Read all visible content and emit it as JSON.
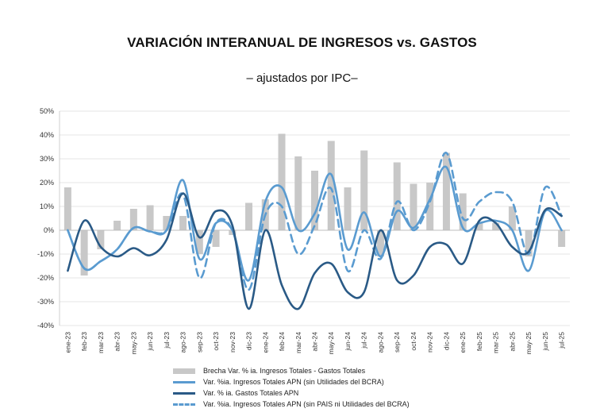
{
  "chart_data": {
    "type": "bar+line",
    "title": "VARIACIÓN INTERANUAL DE INGRESOS vs. GASTOS",
    "subtitle": "– ajustados por IPC–",
    "ylim": [
      -40,
      50
    ],
    "yticks": [
      "50%",
      "40%",
      "30%",
      "20%",
      "10%",
      "0%",
      "-10%",
      "-20%",
      "-30%",
      "-40%"
    ],
    "ytick_values": [
      50,
      40,
      30,
      20,
      10,
      0,
      -10,
      -20,
      -30,
      -40
    ],
    "categories": [
      "ene-23",
      "feb-23",
      "mar-23",
      "abr-23",
      "may-23",
      "jun-23",
      "jul-23",
      "ago-23",
      "sep-23",
      "oct-23",
      "nov-23",
      "dic-23",
      "ene-24",
      "feb-24",
      "mar-24",
      "abr-24",
      "may-24",
      "jun-24",
      "jul-24",
      "ago-24",
      "sep-24",
      "oct-24",
      "nov-24",
      "dic-24",
      "ene-25",
      "feb-25",
      "mar-25",
      "abr-25",
      "may-25",
      "jun-25",
      "jul-25"
    ],
    "series": [
      {
        "name": "Brecha Var. % ia. Ingresos Totales - Gastos Totales",
        "kind": "bar",
        "color": "#c8c8c8",
        "values": [
          18,
          -19,
          -8,
          4,
          9,
          10.5,
          6,
          6,
          -10,
          -7,
          -2,
          11.5,
          13,
          40.5,
          31,
          25,
          37.5,
          18,
          33.5,
          -11,
          28.5,
          19.5,
          20,
          32.5,
          15.5,
          3,
          3,
          10,
          -11,
          0,
          -7
        ]
      },
      {
        "name": "Var. %ia. Ingresos Totales APN (sin Utilidades del BCRA)",
        "kind": "line",
        "color": "#5a9bd0",
        "values": [
          0,
          -16,
          -13,
          -8,
          1,
          -0.5,
          0,
          21,
          -12,
          3,
          0,
          -21,
          12,
          18,
          0,
          7,
          23.5,
          -8,
          7.5,
          -11,
          8,
          1,
          13,
          26.5,
          1,
          3,
          4,
          0,
          -17,
          8,
          0
        ]
      },
      {
        "name": "Var. % ia. Gastos Totales APN",
        "kind": "line",
        "color": "#2a5a86",
        "values": [
          -17,
          4,
          -7,
          -11,
          -7.5,
          -10.5,
          -4,
          15.5,
          -3,
          8,
          2,
          -33,
          0,
          -23,
          -33,
          -18,
          -14,
          -26,
          -26,
          0,
          -21,
          -19,
          -7,
          -6,
          -14,
          4,
          3,
          -7,
          -9,
          8.5,
          6
        ]
      },
      {
        "name": "Var. %ia. Ingresos Totales APN (sin PAIS ni Utilidades del BCRA)",
        "kind": "dashed-line",
        "color": "#5a9bd0",
        "values": [
          0,
          -16,
          -13,
          -8,
          1,
          -0.5,
          0,
          15,
          -20,
          3,
          0,
          -25,
          6.5,
          10,
          -10,
          2,
          17.5,
          -17,
          0,
          -12,
          12,
          0,
          12,
          32.5,
          5,
          12,
          16,
          12,
          -10,
          18,
          6
        ]
      }
    ],
    "legend_placement": "bottom"
  }
}
